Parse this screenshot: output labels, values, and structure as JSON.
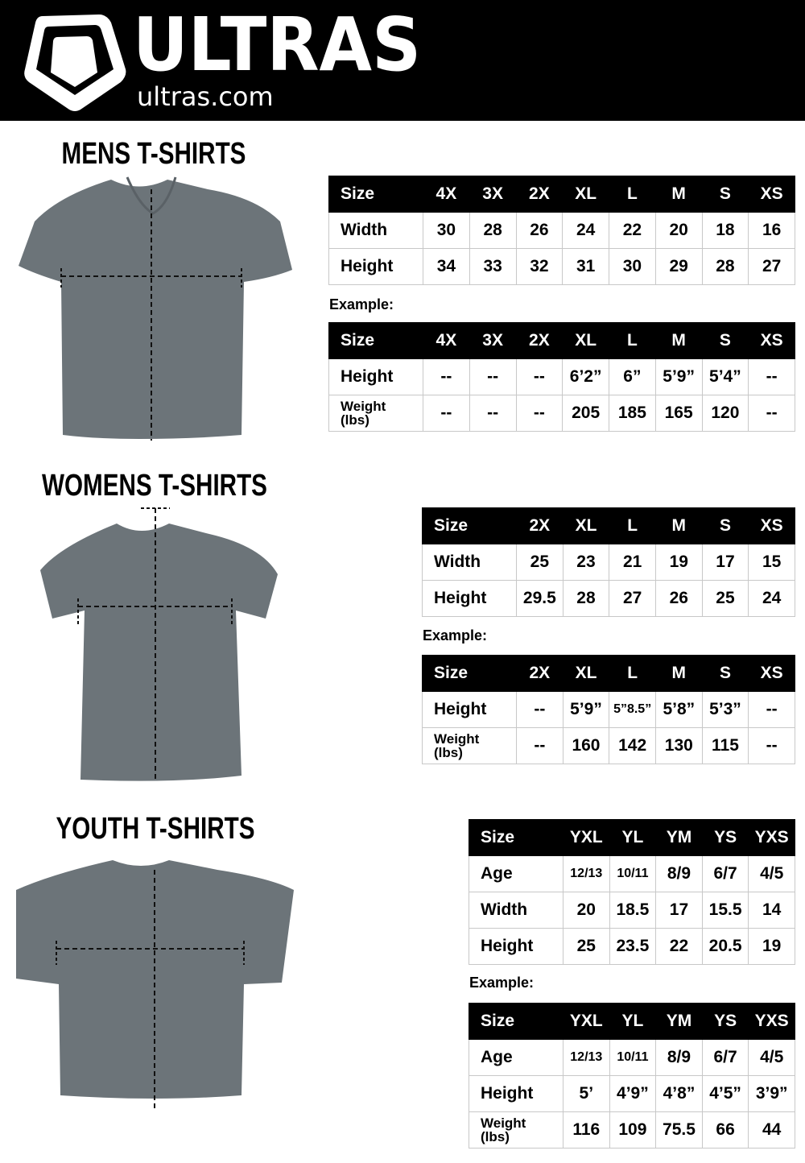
{
  "header": {
    "brand": "ULTRAS",
    "website": "ultras.com",
    "logo_icon": "shield-pentagon-icon"
  },
  "example_label": "Example:",
  "sections": [
    {
      "title": "MENS T-SHIRTS",
      "measure_table": {
        "columns": [
          "Size",
          "4X",
          "3X",
          "2X",
          "XL",
          "L",
          "M",
          "S",
          "XS"
        ],
        "rows": [
          [
            "Width",
            "30",
            "28",
            "26",
            "24",
            "22",
            "20",
            "18",
            "16"
          ],
          [
            "Height",
            "34",
            "33",
            "32",
            "31",
            "30",
            "29",
            "28",
            "27"
          ]
        ]
      },
      "example_table": {
        "columns": [
          "Size",
          "4X",
          "3X",
          "2X",
          "XL",
          "L",
          "M",
          "S",
          "XS"
        ],
        "rows": [
          [
            "Height",
            "--",
            "--",
            "--",
            "6’2”",
            "6”",
            "5’9”",
            "5’4”",
            "--"
          ],
          [
            "Weight (lbs)",
            "--",
            "--",
            "--",
            "205",
            "185",
            "165",
            "120",
            "--"
          ]
        ]
      }
    },
    {
      "title": "WOMENS T-SHIRTS",
      "measure_table": {
        "columns": [
          "Size",
          "2X",
          "XL",
          "L",
          "M",
          "S",
          "XS"
        ],
        "rows": [
          [
            "Width",
            "25",
            "23",
            "21",
            "19",
            "17",
            "15"
          ],
          [
            "Height",
            "29.5",
            "28",
            "27",
            "26",
            "25",
            "24"
          ]
        ]
      },
      "example_table": {
        "columns": [
          "Size",
          "2X",
          "XL",
          "L",
          "M",
          "S",
          "XS"
        ],
        "rows": [
          [
            "Height",
            "--",
            "5’9”",
            "5”8.5”",
            "5’8”",
            "5’3”",
            "--"
          ],
          [
            "Weight (lbs)",
            "--",
            "160",
            "142",
            "130",
            "115",
            "--"
          ]
        ]
      }
    },
    {
      "title": "YOUTH T-SHIRTS",
      "measure_table": {
        "columns": [
          "Size",
          "YXL",
          "YL",
          "YM",
          "YS",
          "YXS"
        ],
        "rows": [
          [
            "Age",
            "12/13",
            "10/11",
            "8/9",
            "6/7",
            "4/5"
          ],
          [
            "Width",
            "20",
            "18.5",
            "17",
            "15.5",
            "14"
          ],
          [
            "Height",
            "25",
            "23.5",
            "22",
            "20.5",
            "19"
          ]
        ]
      },
      "example_table": {
        "columns": [
          "Size",
          "YXL",
          "YL",
          "YM",
          "YS",
          "YXS"
        ],
        "rows": [
          [
            "Age",
            "12/13",
            "10/11",
            "8/9",
            "6/7",
            "4/5"
          ],
          [
            "Height",
            "5’",
            "4’9”",
            "4’8”",
            "4’5”",
            "3’9”"
          ],
          [
            "Weight (lbs)",
            "116",
            "109",
            "75.5",
            "66",
            "44"
          ]
        ]
      }
    }
  ],
  "colors": {
    "banner": "#000000",
    "shirt": "#6c7479",
    "table_header": "#000000",
    "grid": "#c8c8c8"
  }
}
